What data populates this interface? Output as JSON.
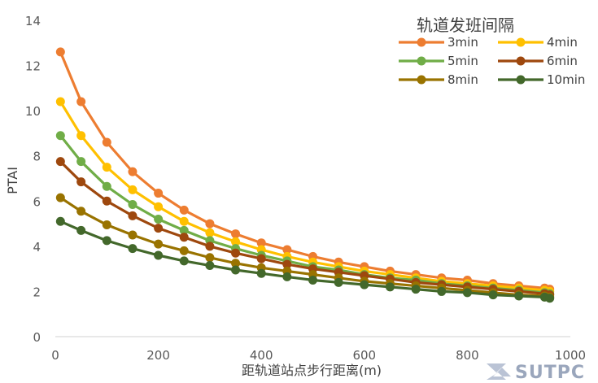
{
  "chart_data": {
    "type": "line",
    "title": "",
    "xlabel": "距轨道站点步行距离(m)",
    "ylabel": "PTAI",
    "xlim": [
      0,
      1000
    ],
    "ylim": [
      0,
      14
    ],
    "xticks": [
      0,
      200,
      400,
      600,
      800,
      1000
    ],
    "yticks": [
      0,
      2,
      4,
      6,
      8,
      10,
      12,
      14
    ],
    "grid": false,
    "legend": {
      "title": "轨道发班间隔",
      "placement": "top-right"
    },
    "x": [
      10,
      50,
      100,
      150,
      200,
      250,
      300,
      350,
      400,
      450,
      500,
      550,
      600,
      650,
      700,
      750,
      800,
      850,
      900,
      950,
      960
    ],
    "series": [
      {
        "name": "3min",
        "color": "#ED7D31",
        "values": [
          12.6,
          10.4,
          8.6,
          7.3,
          6.35,
          5.6,
          5.0,
          4.55,
          4.15,
          3.85,
          3.55,
          3.3,
          3.1,
          2.9,
          2.75,
          2.6,
          2.5,
          2.35,
          2.25,
          2.15,
          2.1
        ]
      },
      {
        "name": "4min",
        "color": "#FFC000",
        "values": [
          10.4,
          8.9,
          7.5,
          6.5,
          5.75,
          5.1,
          4.6,
          4.2,
          3.85,
          3.55,
          3.3,
          3.1,
          2.9,
          2.75,
          2.6,
          2.45,
          2.35,
          2.25,
          2.15,
          2.05,
          2.0
        ]
      },
      {
        "name": "5min",
        "color": "#70AD47",
        "values": [
          8.9,
          7.75,
          6.65,
          5.85,
          5.2,
          4.7,
          4.25,
          3.9,
          3.6,
          3.35,
          3.1,
          2.95,
          2.75,
          2.6,
          2.5,
          2.35,
          2.25,
          2.15,
          2.05,
          1.95,
          1.9
        ]
      },
      {
        "name": "6min",
        "color": "#9E480E",
        "values": [
          7.75,
          6.85,
          6.0,
          5.35,
          4.8,
          4.4,
          4.0,
          3.7,
          3.45,
          3.2,
          3.0,
          2.85,
          2.7,
          2.55,
          2.4,
          2.3,
          2.2,
          2.1,
          2.0,
          1.9,
          1.85
        ]
      },
      {
        "name": "8min",
        "color": "#997300",
        "values": [
          6.15,
          5.55,
          4.95,
          4.5,
          4.1,
          3.8,
          3.5,
          3.25,
          3.05,
          2.9,
          2.75,
          2.6,
          2.45,
          2.35,
          2.25,
          2.15,
          2.05,
          1.95,
          1.85,
          1.8,
          1.75
        ]
      },
      {
        "name": "10min",
        "color": "#43682B",
        "values": [
          5.1,
          4.7,
          4.25,
          3.9,
          3.6,
          3.35,
          3.15,
          2.95,
          2.8,
          2.65,
          2.5,
          2.4,
          2.3,
          2.2,
          2.1,
          2.0,
          1.95,
          1.85,
          1.8,
          1.75,
          1.7
        ]
      }
    ]
  },
  "watermark": {
    "text": "SUTPC",
    "icon": "sutpc-logo-icon"
  }
}
